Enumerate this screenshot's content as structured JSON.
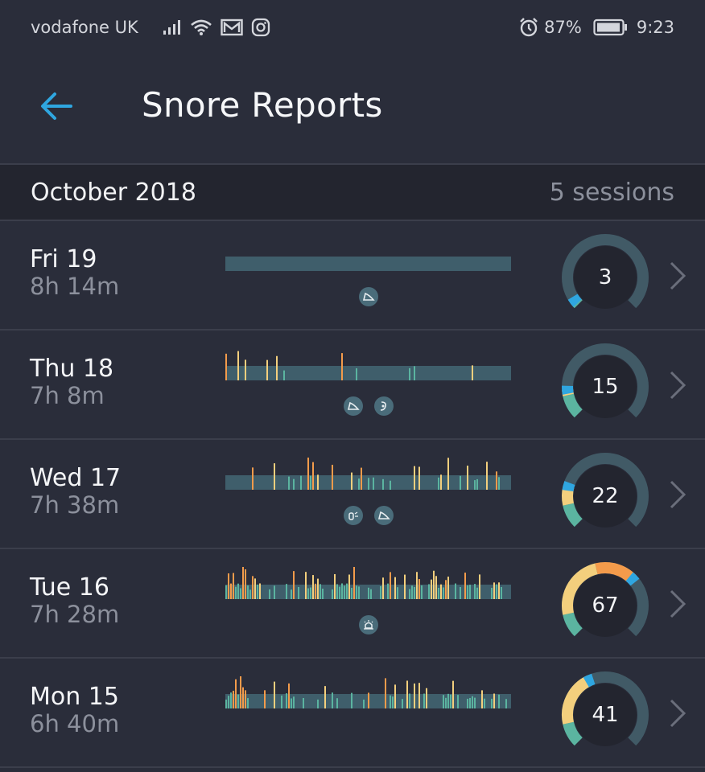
{
  "status_bar": {
    "carrier": "vodafone UK",
    "battery": "87%",
    "time": "9:23",
    "icons": [
      "signal-icon",
      "wifi-icon",
      "mail-icon",
      "instagram-icon",
      "alarm-icon",
      "battery-icon"
    ]
  },
  "header": {
    "title": "Snore Reports",
    "back_icon": "arrow-left-icon"
  },
  "month": {
    "label": "October 2018",
    "sessions": "5 sessions"
  },
  "colors": {
    "track": "#3f5e6b",
    "teal": "#5bb4a0",
    "yellow": "#f3cf7d",
    "orange": "#f39b4b",
    "blue": "#2fa6e0",
    "gauge_track": "#415a66"
  },
  "sessions": [
    {
      "day": "Fri 19",
      "duration": "8h 14m",
      "score": "3",
      "level": 3,
      "events": [
        "wedge-pillow-icon"
      ]
    },
    {
      "day": "Thu 18",
      "duration": "7h 8m",
      "score": "15",
      "level": 15,
      "events": [
        "wedge-pillow-icon",
        "nasal-strip-icon"
      ]
    },
    {
      "day": "Wed 17",
      "duration": "7h 38m",
      "score": "22",
      "level": 22,
      "events": [
        "mouth-guard-icon",
        "wedge-pillow-icon"
      ]
    },
    {
      "day": "Tue 16",
      "duration": "7h 28m",
      "score": "67",
      "level": 67,
      "events": [
        "alarm-bell-icon"
      ]
    },
    {
      "day": "Mon 15",
      "duration": "6h 40m",
      "score": "41",
      "level": 41,
      "events": []
    }
  ]
}
